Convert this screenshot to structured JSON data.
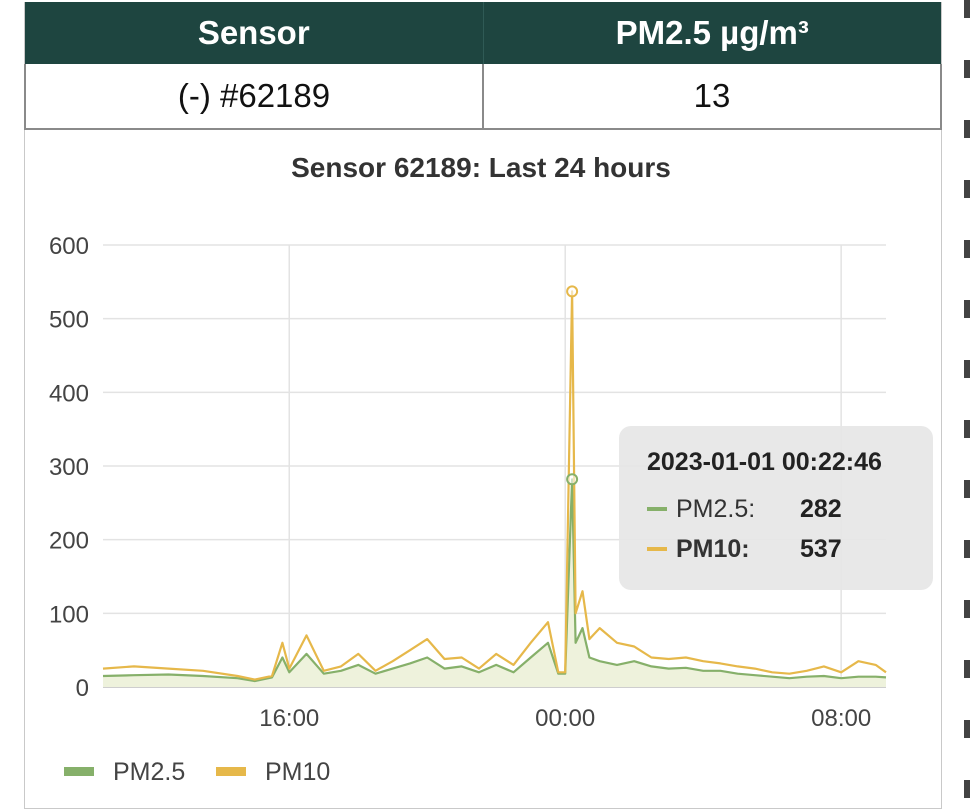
{
  "table": {
    "headers": [
      "Sensor",
      "PM2.5 µg/m³"
    ],
    "row": [
      "(-) #62189",
      "13"
    ]
  },
  "colors": {
    "header_bg": "#1e4540",
    "pm25": "#86b06a",
    "pm10": "#e6b84a",
    "tooltip_bg": "#e6e6e6"
  },
  "chart_data": {
    "type": "line",
    "title": "Sensor 62189: Last 24 hours",
    "xlabel": "",
    "ylabel": "",
    "x_tick_labels": [
      "16:00",
      "00:00",
      "08:00"
    ],
    "x_ticks_hours": [
      16,
      24,
      32
    ],
    "xlim_hours": [
      10.6,
      33.3
    ],
    "ylim": [
      0,
      600
    ],
    "y_ticks": [
      0,
      100,
      200,
      300,
      400,
      500,
      600
    ],
    "grid": true,
    "legend": {
      "placement": "bottom-left",
      "entries": [
        "PM2.5",
        "PM10"
      ]
    },
    "series": [
      {
        "name": "PM2.5",
        "color": "#86b06a",
        "fill": true,
        "points": [
          [
            10.6,
            15
          ],
          [
            11.5,
            16
          ],
          [
            12.5,
            17
          ],
          [
            13.5,
            15
          ],
          [
            14.5,
            12
          ],
          [
            15.0,
            8
          ],
          [
            15.5,
            13
          ],
          [
            15.8,
            40
          ],
          [
            16.0,
            20
          ],
          [
            16.5,
            45
          ],
          [
            17.0,
            18
          ],
          [
            17.5,
            22
          ],
          [
            18.0,
            30
          ],
          [
            18.5,
            18
          ],
          [
            19.0,
            25
          ],
          [
            19.5,
            32
          ],
          [
            20.0,
            40
          ],
          [
            20.5,
            25
          ],
          [
            21.0,
            28
          ],
          [
            21.5,
            20
          ],
          [
            22.0,
            30
          ],
          [
            22.5,
            20
          ],
          [
            23.0,
            40
          ],
          [
            23.5,
            60
          ],
          [
            23.8,
            18
          ],
          [
            24.0,
            18
          ],
          [
            24.2,
            282
          ],
          [
            24.3,
            60
          ],
          [
            24.5,
            80
          ],
          [
            24.7,
            40
          ],
          [
            25.0,
            35
          ],
          [
            25.5,
            30
          ],
          [
            26.0,
            35
          ],
          [
            26.5,
            28
          ],
          [
            27.0,
            25
          ],
          [
            27.5,
            26
          ],
          [
            28.0,
            22
          ],
          [
            28.5,
            22
          ],
          [
            29.0,
            18
          ],
          [
            29.5,
            16
          ],
          [
            30.0,
            14
          ],
          [
            30.5,
            12
          ],
          [
            31.0,
            14
          ],
          [
            31.5,
            15
          ],
          [
            32.0,
            12
          ],
          [
            32.5,
            14
          ],
          [
            33.0,
            14
          ],
          [
            33.3,
            13
          ]
        ]
      },
      {
        "name": "PM10",
        "color": "#e6b84a",
        "fill": false,
        "points": [
          [
            10.6,
            25
          ],
          [
            11.5,
            28
          ],
          [
            12.5,
            25
          ],
          [
            13.5,
            22
          ],
          [
            14.5,
            15
          ],
          [
            15.0,
            10
          ],
          [
            15.5,
            15
          ],
          [
            15.8,
            60
          ],
          [
            16.0,
            25
          ],
          [
            16.5,
            70
          ],
          [
            17.0,
            22
          ],
          [
            17.5,
            28
          ],
          [
            18.0,
            45
          ],
          [
            18.5,
            22
          ],
          [
            19.0,
            35
          ],
          [
            19.5,
            50
          ],
          [
            20.0,
            65
          ],
          [
            20.5,
            38
          ],
          [
            21.0,
            40
          ],
          [
            21.5,
            25
          ],
          [
            22.0,
            45
          ],
          [
            22.5,
            30
          ],
          [
            23.0,
            60
          ],
          [
            23.5,
            88
          ],
          [
            23.8,
            20
          ],
          [
            24.0,
            20
          ],
          [
            24.2,
            537
          ],
          [
            24.3,
            100
          ],
          [
            24.5,
            130
          ],
          [
            24.7,
            65
          ],
          [
            25.0,
            80
          ],
          [
            25.5,
            60
          ],
          [
            26.0,
            55
          ],
          [
            26.5,
            40
          ],
          [
            27.0,
            38
          ],
          [
            27.5,
            40
          ],
          [
            28.0,
            35
          ],
          [
            28.5,
            32
          ],
          [
            29.0,
            28
          ],
          [
            29.5,
            25
          ],
          [
            30.0,
            20
          ],
          [
            30.5,
            18
          ],
          [
            31.0,
            22
          ],
          [
            31.5,
            28
          ],
          [
            32.0,
            20
          ],
          [
            32.5,
            35
          ],
          [
            33.0,
            30
          ],
          [
            33.3,
            20
          ]
        ]
      }
    ],
    "tooltip": {
      "timestamp": "2023-01-01 00:22:46",
      "x_hours": 24.2,
      "rows": [
        {
          "label": "PM2.5:",
          "value": "282",
          "bold": false
        },
        {
          "label": "PM10:",
          "value": "537",
          "bold": true
        }
      ]
    }
  }
}
